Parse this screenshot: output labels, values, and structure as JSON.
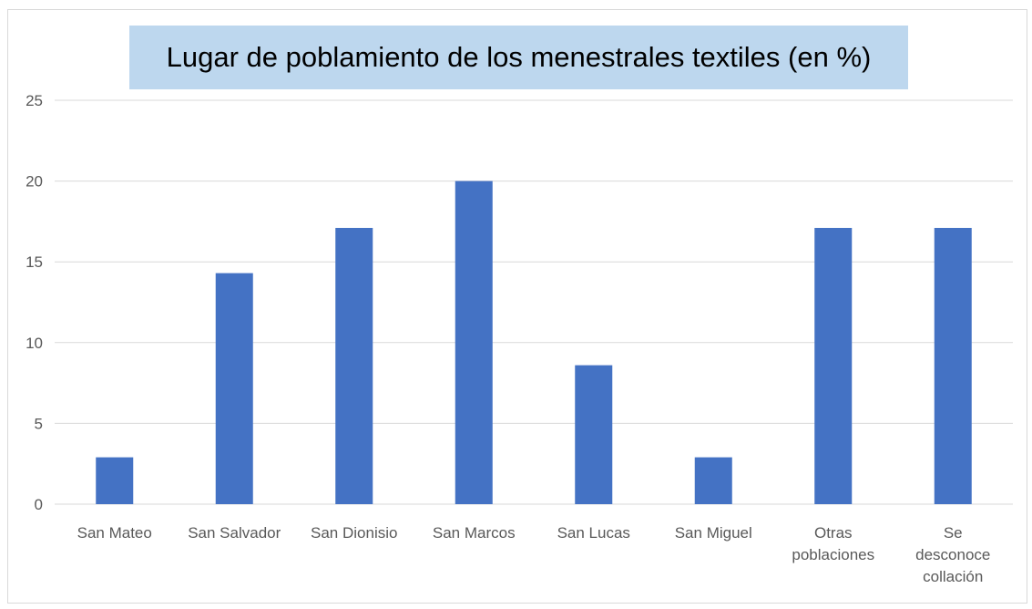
{
  "chart_data": {
    "type": "bar",
    "title": "Lugar de poblamiento de los menestrales textiles (en %)",
    "xlabel": "",
    "ylabel": "",
    "categories": [
      [
        "San Mateo"
      ],
      [
        "San Salvador"
      ],
      [
        "San Dionisio"
      ],
      [
        "San Marcos"
      ],
      [
        "San Lucas"
      ],
      [
        "San Miguel"
      ],
      [
        "Otras",
        "poblaciones"
      ],
      [
        "Se",
        "desconoce",
        "collación"
      ]
    ],
    "values": [
      2.9,
      14.3,
      17.1,
      20.0,
      8.6,
      2.9,
      17.1,
      17.1
    ],
    "ylim": [
      0,
      25
    ],
    "yticks": [
      0,
      5,
      10,
      15,
      20,
      25
    ],
    "grid": true,
    "legend": "none",
    "colors": {
      "bar": "#4472c4",
      "grid": "#d9d9d9",
      "title_bg": "#bdd7ee"
    }
  }
}
